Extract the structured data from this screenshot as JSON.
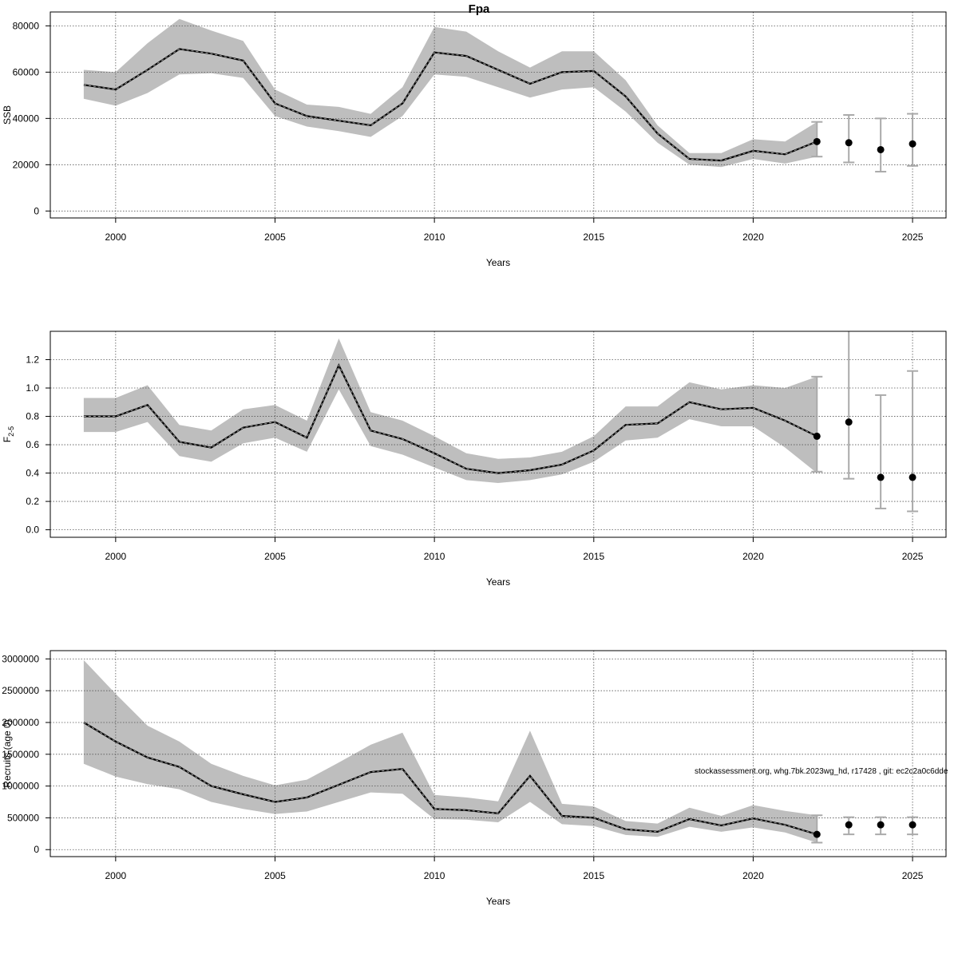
{
  "title": "Fpa",
  "footnote": "stockassessment.org, whg.7bk.2023wg_hd, r17428 , git: ec2c2a0c6dde",
  "chart_data": [
    {
      "type": "line",
      "ylabel": "SSB",
      "xlabel": "Years",
      "xlim": [
        1997.95,
        2026.05
      ],
      "ylim": [
        -3000,
        86000
      ],
      "xticks": [
        2000,
        2005,
        2010,
        2015,
        2020,
        2025
      ],
      "yticks": [
        0,
        20000,
        40000,
        60000,
        80000
      ],
      "ytick_labels": [
        "0",
        "20000",
        "40000",
        "60000",
        "80000"
      ],
      "grid": true,
      "x": [
        1999,
        2000,
        2001,
        2002,
        2003,
        2004,
        2005,
        2006,
        2007,
        2008,
        2009,
        2010,
        2011,
        2012,
        2013,
        2014,
        2015,
        2016,
        2017,
        2018,
        2019,
        2020,
        2021,
        2022
      ],
      "estimate": [
        54500,
        52500,
        61000,
        70000,
        68000,
        65000,
        46500,
        41000,
        39000,
        37000,
        46500,
        68500,
        67000,
        61000,
        55000,
        60000,
        60500,
        49500,
        33500,
        22500,
        21800,
        26000,
        24500,
        30000
      ],
      "lower": [
        48500,
        45500,
        51000,
        59000,
        59500,
        57500,
        41000,
        36500,
        34500,
        32000,
        41000,
        59000,
        58000,
        53500,
        49000,
        52500,
        53500,
        43000,
        29500,
        20000,
        19000,
        22500,
        20500,
        23500
      ],
      "upper": [
        61000,
        60000,
        72500,
        83000,
        78000,
        73500,
        52500,
        46000,
        45000,
        42000,
        53500,
        79500,
        77500,
        69000,
        62000,
        69000,
        69000,
        56500,
        37000,
        25000,
        25000,
        31000,
        30000,
        38500
      ],
      "forecast": [
        {
          "year": 2022,
          "value": 30000,
          "low": 23500,
          "high": 38500
        },
        {
          "year": 2023,
          "value": 29500,
          "low": 21000,
          "high": 41500
        },
        {
          "year": 2024,
          "value": 26500,
          "low": 17000,
          "high": 40000
        },
        {
          "year": 2025,
          "value": 29000,
          "low": 19500,
          "high": 42000
        }
      ]
    },
    {
      "type": "line",
      "ylabel": "F2-5",
      "xlabel": "Years",
      "xlim": [
        1997.95,
        2026.05
      ],
      "ylim": [
        -0.053,
        1.4
      ],
      "xticks": [
        2000,
        2005,
        2010,
        2015,
        2020,
        2025
      ],
      "yticks": [
        0,
        0.2,
        0.4,
        0.6,
        0.8,
        1.0,
        1.2
      ],
      "ytick_labels": [
        "0.0",
        "0.2",
        "0.4",
        "0.6",
        "0.8",
        "1.0",
        "1.2"
      ],
      "grid": true,
      "x": [
        1999,
        2000,
        2001,
        2002,
        2003,
        2004,
        2005,
        2006,
        2007,
        2008,
        2009,
        2010,
        2011,
        2012,
        2013,
        2014,
        2015,
        2016,
        2017,
        2018,
        2019,
        2020,
        2021,
        2022
      ],
      "estimate": [
        0.8,
        0.8,
        0.88,
        0.62,
        0.58,
        0.72,
        0.76,
        0.65,
        1.16,
        0.7,
        0.64,
        0.54,
        0.43,
        0.4,
        0.42,
        0.46,
        0.56,
        0.74,
        0.75,
        0.9,
        0.85,
        0.86,
        0.77,
        0.66
      ],
      "lower": [
        0.69,
        0.69,
        0.76,
        0.52,
        0.48,
        0.61,
        0.65,
        0.55,
        0.99,
        0.59,
        0.53,
        0.44,
        0.35,
        0.33,
        0.35,
        0.39,
        0.48,
        0.63,
        0.65,
        0.78,
        0.73,
        0.73,
        0.58,
        0.4
      ],
      "upper": [
        0.93,
        0.93,
        1.02,
        0.74,
        0.7,
        0.85,
        0.88,
        0.77,
        1.35,
        0.83,
        0.77,
        0.66,
        0.54,
        0.5,
        0.51,
        0.55,
        0.66,
        0.87,
        0.87,
        1.04,
        0.99,
        1.02,
        1.0,
        1.08
      ],
      "forecast": [
        {
          "year": 2022,
          "value": 0.66,
          "low": 0.41,
          "high": 1.08
        },
        {
          "year": 2023,
          "value": 0.76,
          "low": 0.36,
          "high": 1.45
        },
        {
          "year": 2024,
          "value": 0.37,
          "low": 0.15,
          "high": 0.95
        },
        {
          "year": 2025,
          "value": 0.37,
          "low": 0.13,
          "high": 1.12
        }
      ]
    },
    {
      "type": "line",
      "ylabel": "Recruits (age 0)",
      "xlabel": "Years",
      "xlim": [
        1997.95,
        2026.05
      ],
      "ylim": [
        -110000,
        3130000
      ],
      "xticks": [
        2000,
        2005,
        2010,
        2015,
        2020,
        2025
      ],
      "yticks": [
        0,
        500000,
        1000000,
        1500000,
        2000000,
        2500000,
        3000000
      ],
      "ytick_labels": [
        "0",
        "500000",
        "1000000",
        "1500000",
        "2000000",
        "2500000",
        "3000000"
      ],
      "grid": true,
      "x": [
        1999,
        2000,
        2001,
        2002,
        2003,
        2004,
        2005,
        2006,
        2007,
        2008,
        2009,
        2010,
        2011,
        2012,
        2013,
        2014,
        2015,
        2016,
        2017,
        2018,
        2019,
        2020,
        2021,
        2022
      ],
      "estimate": [
        2000000,
        1700000,
        1450000,
        1300000,
        1000000,
        870000,
        750000,
        820000,
        1020000,
        1220000,
        1270000,
        640000,
        620000,
        570000,
        1160000,
        530000,
        500000,
        320000,
        280000,
        480000,
        380000,
        490000,
        390000,
        240000
      ],
      "lower": [
        1350000,
        1150000,
        1030000,
        950000,
        750000,
        640000,
        560000,
        600000,
        750000,
        900000,
        880000,
        480000,
        470000,
        430000,
        750000,
        400000,
        370000,
        230000,
        200000,
        360000,
        280000,
        350000,
        270000,
        110000
      ],
      "upper": [
        2980000,
        2450000,
        1950000,
        1700000,
        1350000,
        1160000,
        1010000,
        1100000,
        1370000,
        1650000,
        1840000,
        860000,
        820000,
        760000,
        1870000,
        720000,
        680000,
        450000,
        410000,
        660000,
        530000,
        700000,
        610000,
        540000
      ],
      "forecast": [
        {
          "year": 2022,
          "value": 240000,
          "low": 110000,
          "high": 540000
        },
        {
          "year": 2023,
          "value": 390000,
          "low": 240000,
          "high": 510000
        },
        {
          "year": 2024,
          "value": 390000,
          "low": 240000,
          "high": 510000
        },
        {
          "year": 2025,
          "value": 390000,
          "low": 240000,
          "high": 510000
        }
      ]
    }
  ]
}
